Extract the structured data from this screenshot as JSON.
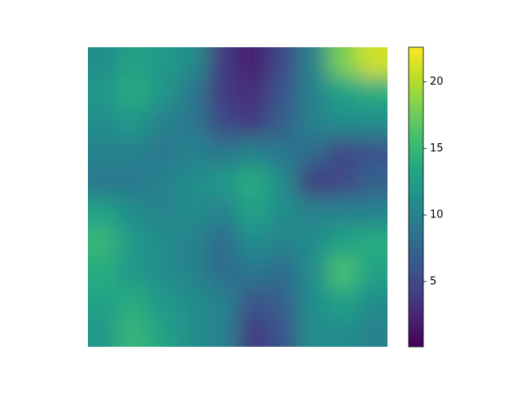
{
  "chart_data": {
    "type": "heatmap",
    "colormap": "viridis",
    "z": [
      [
        11,
        13,
        12,
        11,
        4,
        2,
        5,
        10,
        18,
        21
      ],
      [
        12,
        14,
        12,
        9,
        4,
        3,
        6,
        10,
        13,
        14
      ],
      [
        11,
        12,
        10,
        9,
        5,
        4,
        7,
        10,
        11,
        11
      ],
      [
        10,
        10,
        9,
        10,
        9,
        10,
        9,
        8,
        5,
        6
      ],
      [
        9,
        9,
        10,
        11,
        12,
        14,
        11,
        4,
        5,
        7
      ],
      [
        13,
        11,
        10,
        11,
        10,
        13,
        11,
        10,
        10,
        10
      ],
      [
        15,
        12,
        11,
        10,
        8,
        11,
        10,
        11,
        13,
        14
      ],
      [
        14,
        12,
        11,
        10,
        8,
        9,
        8,
        11,
        16,
        13
      ],
      [
        13,
        14,
        12,
        11,
        10,
        6,
        7,
        11,
        13,
        11
      ],
      [
        12,
        15,
        13,
        11,
        10,
        4,
        6,
        11,
        11,
        10
      ]
    ],
    "clim": [
      0.1,
      22.6
    ],
    "cticks": [
      5,
      10,
      15,
      20
    ]
  }
}
